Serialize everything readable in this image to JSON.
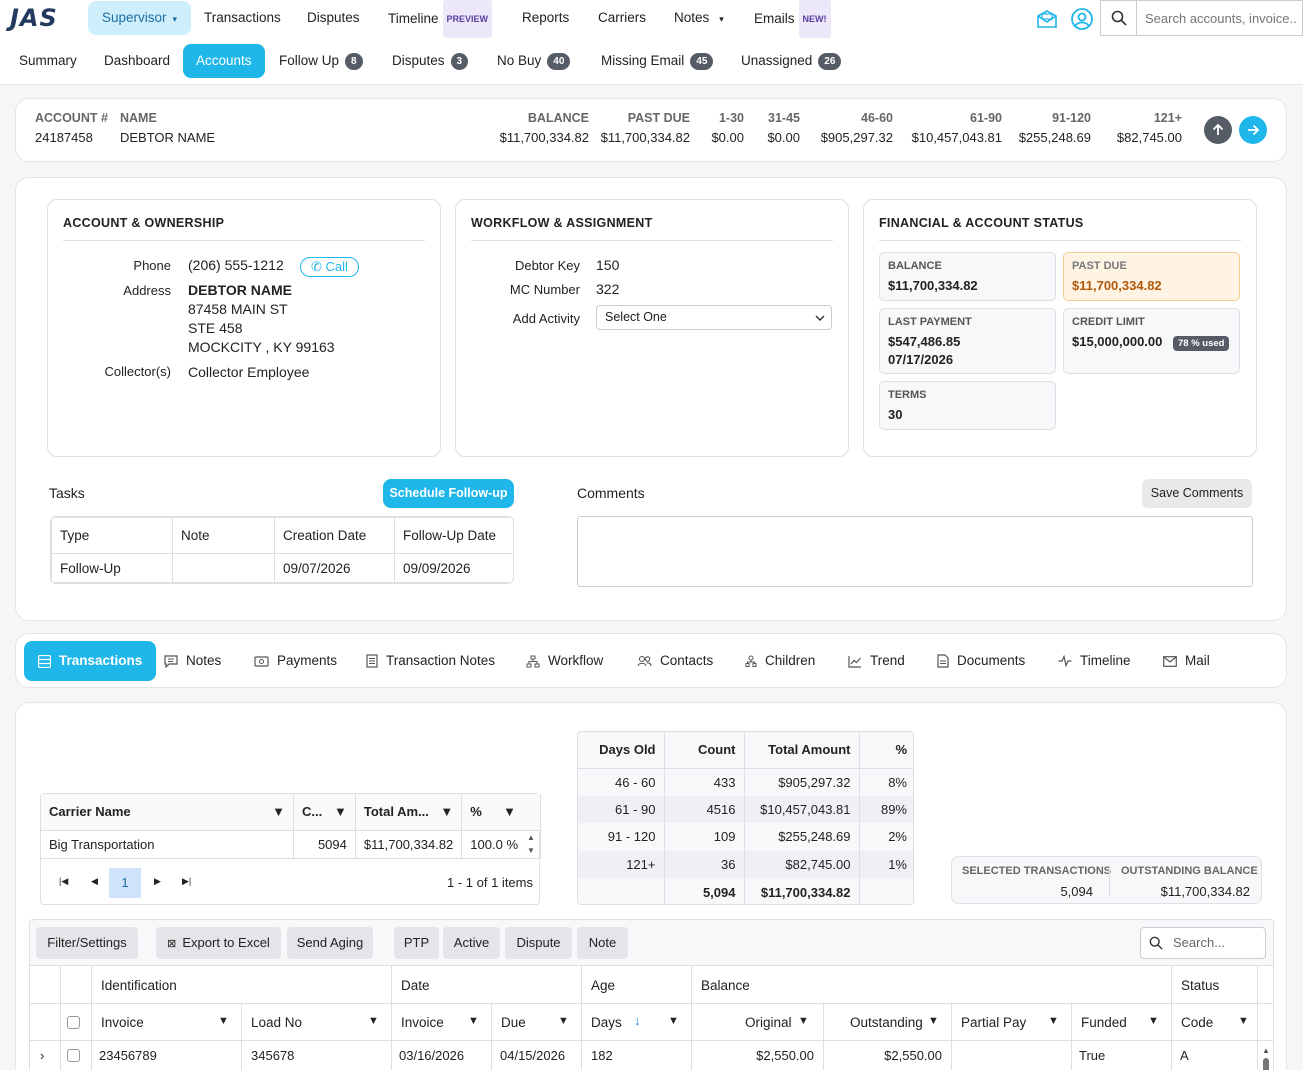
{
  "app": {
    "logo": "JAS"
  },
  "topnav": {
    "items": [
      {
        "label": "Supervisor"
      },
      {
        "label": "Transactions"
      },
      {
        "label": "Disputes"
      },
      {
        "label": "Timeline",
        "badge": "PREVIEW"
      },
      {
        "label": "Reports"
      },
      {
        "label": "Carriers"
      },
      {
        "label": "Notes"
      },
      {
        "label": "Emails",
        "badge": "NEW!"
      }
    ],
    "search_placeholder": "Search accounts, invoice..."
  },
  "subnav": {
    "items": [
      {
        "label": "Summary"
      },
      {
        "label": "Dashboard"
      },
      {
        "label": "Accounts"
      },
      {
        "label": "Follow Up",
        "count": "8"
      },
      {
        "label": "Disputes",
        "count": "3"
      },
      {
        "label": "No Buy",
        "count": "40"
      },
      {
        "label": "Missing Email",
        "count": "45"
      },
      {
        "label": "Unassigned",
        "count": "26"
      }
    ]
  },
  "account_header": {
    "account_label": "ACCOUNT #",
    "account": "24187458",
    "name_label": "NAME",
    "name": "DEBTOR NAME",
    "cols": [
      {
        "label": "BALANCE",
        "value": "$11,700,334.82"
      },
      {
        "label": "PAST DUE",
        "value": "$11,700,334.82"
      },
      {
        "label": "1-30",
        "value": "$0.00"
      },
      {
        "label": "31-45",
        "value": "$0.00"
      },
      {
        "label": "46-60",
        "value": "$905,297.32"
      },
      {
        "label": "61-90",
        "value": "$10,457,043.81"
      },
      {
        "label": "91-120",
        "value": "$255,248.69"
      },
      {
        "label": "121+",
        "value": "$82,745.00"
      }
    ]
  },
  "ownership": {
    "title": "ACCOUNT & OWNERSHIP",
    "phone_label": "Phone",
    "phone": "(206) 555-1212",
    "call_label": "Call",
    "address_label": "Address",
    "address": [
      "DEBTOR NAME",
      "87458 MAIN ST",
      "STE 458",
      "MOCKCITY , KY 99163"
    ],
    "collector_label": "Collector(s)",
    "collector": "Collector Employee"
  },
  "workflow": {
    "title": "WORKFLOW & ASSIGNMENT",
    "debtor_key_label": "Debtor Key",
    "debtor_key": "150",
    "mc_label": "MC Number",
    "mc": "322",
    "activity_label": "Add Activity",
    "activity_value": "Select One"
  },
  "financial": {
    "title": "FINANCIAL & ACCOUNT STATUS",
    "balance_label": "BALANCE",
    "balance": "$11,700,334.82",
    "past_due_label": "PAST DUE",
    "past_due": "$11,700,334.82",
    "last_payment_label": "LAST PAYMENT",
    "last_payment": "$547,486.85",
    "last_payment_date": "07/17/2026",
    "credit_limit_label": "CREDIT LIMIT",
    "credit_limit": "$15,000,000.00",
    "used": "78 % used",
    "terms_label": "TERMS",
    "terms": "30"
  },
  "tasks": {
    "title": "Tasks",
    "schedule_label": "Schedule Follow-up",
    "headers": [
      "Type",
      "Note",
      "Creation Date",
      "Follow-Up Date"
    ],
    "rows": [
      [
        "Follow-Up",
        "",
        "09/07/2026",
        "09/09/2026"
      ]
    ]
  },
  "comments": {
    "title": "Comments",
    "save_label": "Save Comments",
    "value": ""
  },
  "tabs": [
    {
      "label": "Transactions",
      "icon": "table-icon"
    },
    {
      "label": "Notes",
      "icon": "note-icon"
    },
    {
      "label": "Payments",
      "icon": "payment-icon"
    },
    {
      "label": "Transaction Notes",
      "icon": "document-list-icon"
    },
    {
      "label": "Workflow",
      "icon": "workflow-icon"
    },
    {
      "label": "Contacts",
      "icon": "contacts-icon"
    },
    {
      "label": "Children",
      "icon": "children-icon"
    },
    {
      "label": "Trend",
      "icon": "trend-icon"
    },
    {
      "label": "Documents",
      "icon": "document-icon"
    },
    {
      "label": "Timeline",
      "icon": "pulse-icon"
    },
    {
      "label": "Mail",
      "icon": "mail-icon"
    }
  ],
  "carrier_grid": {
    "headers": [
      "Carrier Name",
      "C...",
      "Total Am...",
      "%"
    ],
    "rows": [
      [
        "Big Transportation",
        "5094",
        "$11,700,334.82",
        "100.0 %"
      ]
    ],
    "page": "1",
    "items_text": "1 - 1 of 1 items"
  },
  "aging_table": {
    "headers": [
      "Days Old",
      "Count",
      "Total Amount",
      "%"
    ],
    "rows": [
      [
        "46 - 60",
        "433",
        "$905,297.32",
        "8%"
      ],
      [
        "61 - 90",
        "4516",
        "$10,457,043.81",
        "89%"
      ],
      [
        "91 - 120",
        "109",
        "$255,248.69",
        "2%"
      ],
      [
        "121+",
        "36",
        "$82,745.00",
        "1%"
      ]
    ],
    "totals": [
      "",
      "5,094",
      "$11,700,334.82",
      ""
    ]
  },
  "selection": {
    "selected_label": "SELECTED TRANSACTIONS",
    "selected": "5,094",
    "outstanding_label": "OUTSTANDING BALANCE",
    "outstanding": "$11,700,334.82"
  },
  "tx_grid": {
    "toolbar": [
      "Filter/Settings",
      "Export to Excel",
      "Send Aging",
      "PTP",
      "Active",
      "Dispute",
      "Note"
    ],
    "search_placeholder": "Search...",
    "groups": [
      "Identification",
      "Date",
      "Age",
      "Balance",
      "Status"
    ],
    "columns": [
      "Invoice",
      "Load No",
      "Invoice",
      "Due",
      "Days",
      "Original",
      "Outstanding",
      "Partial Pay",
      "Funded",
      "Code"
    ],
    "rows": [
      [
        "23456789",
        "345678",
        "03/16/2026",
        "04/15/2026",
        "182",
        "$2,550.00",
        "$2,550.00",
        "",
        "True",
        "A"
      ]
    ]
  },
  "colors": {
    "accent": "#1fb6e9",
    "badge": "#555c66",
    "warn_bg": "#fff3e4",
    "warn_text": "#b25a0c"
  }
}
